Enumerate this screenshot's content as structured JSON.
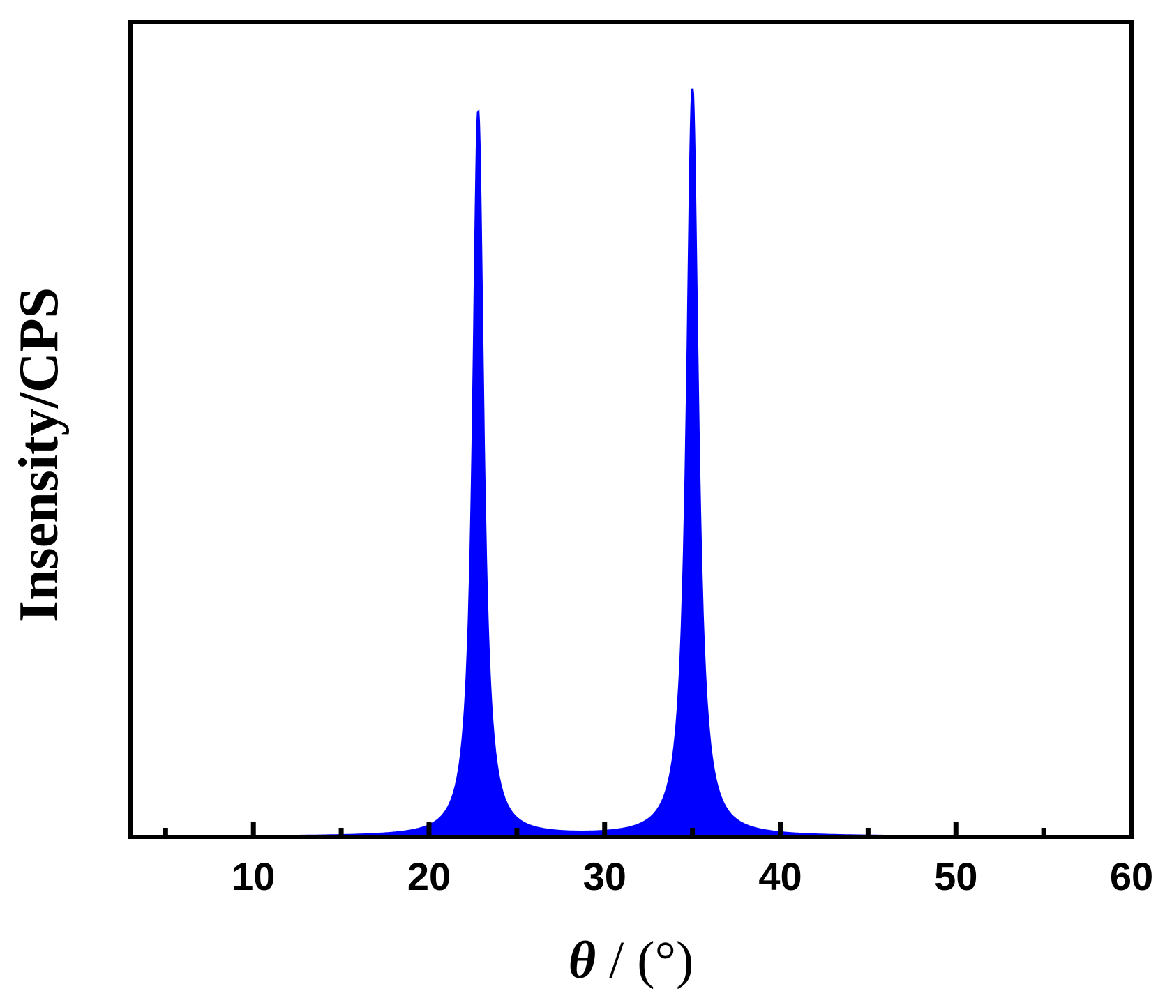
{
  "chart_data": {
    "type": "area",
    "title": "",
    "xlabel_symbol": "θ",
    "xlabel_unit": " / (°)",
    "ylabel": "Insensity/CPS",
    "xlim": [
      3,
      60
    ],
    "ylim": [
      0,
      1.1
    ],
    "x_ticks_labeled": [
      10,
      20,
      30,
      40,
      50,
      60
    ],
    "x_ticks_minor": [
      5,
      15,
      25,
      35,
      45,
      55
    ],
    "y_ticks": [],
    "grid": false,
    "legend": "none",
    "series": [
      {
        "x_start": 3,
        "x_end": 52,
        "peaks": [
          {
            "center": 22.8,
            "height": 0.98,
            "width": 0.35
          },
          {
            "center": 35.0,
            "height": 1.01,
            "width": 0.38
          }
        ]
      }
    ],
    "colors": {
      "series": "#0000ff",
      "axes": "#000000",
      "background": "#ffffff"
    }
  }
}
